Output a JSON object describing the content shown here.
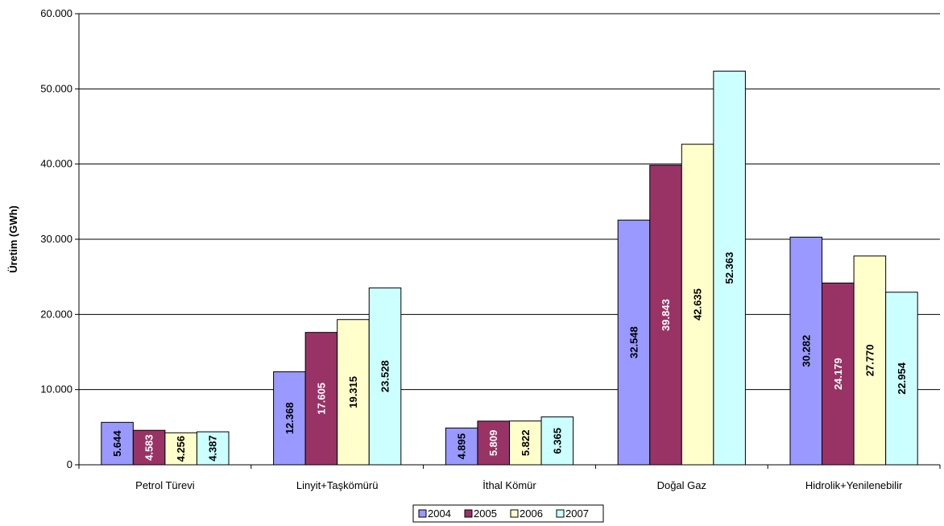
{
  "chart_data": {
    "type": "bar",
    "categories": [
      "Petrol Türevi",
      "Linyit+Taşkömürü",
      "İthal Kömür",
      "Doğal Gaz",
      "Hidrolik+Yenilenebilir"
    ],
    "series": [
      {
        "name": "2004",
        "color": "#9999FF",
        "values": [
          5644,
          12368,
          4895,
          32548,
          30282
        ],
        "labels": [
          "5.644",
          "12.368",
          "4.895",
          "32.548",
          "30.282"
        ]
      },
      {
        "name": "2005",
        "color": "#993366",
        "values": [
          4583,
          17605,
          5809,
          39843,
          24179
        ],
        "labels": [
          "4.583",
          "17.605",
          "5.809",
          "39.843",
          "24.179"
        ]
      },
      {
        "name": "2006",
        "color": "#FFFFCC",
        "values": [
          4256,
          19315,
          5822,
          42635,
          27770
        ],
        "labels": [
          "4.256",
          "19.315",
          "5.822",
          "42.635",
          "27.770"
        ]
      },
      {
        "name": "2007",
        "color": "#CCFFFF",
        "values": [
          4387,
          23528,
          6365,
          52363,
          22954
        ],
        "labels": [
          "4.387",
          "23.528",
          "6.365",
          "52.363",
          "22.954"
        ]
      }
    ],
    "ylabel": "Üretim (GWh)",
    "ylim": [
      0,
      60000
    ],
    "yticks": [
      0,
      10000,
      20000,
      30000,
      40000,
      50000,
      60000
    ],
    "ytick_labels": [
      "0",
      "10.000",
      "20.000",
      "30.000",
      "40.000",
      "50.000",
      "60.000"
    ],
    "grid": true,
    "legend_position": "bottom"
  }
}
